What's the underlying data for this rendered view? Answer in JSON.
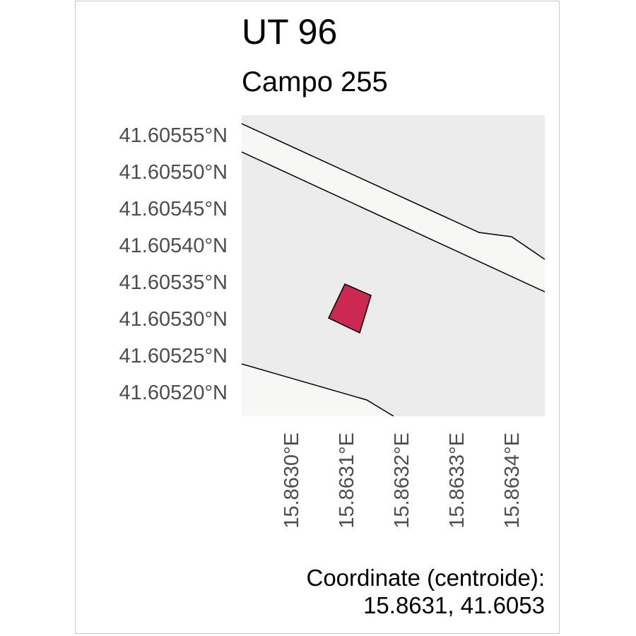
{
  "title": "UT 96",
  "subtitle": "Campo 255",
  "latitude_labels": [
    "41.60555°N",
    "41.60550°N",
    "41.60545°N",
    "41.60540°N",
    "41.60535°N",
    "41.60530°N",
    "41.60525°N",
    "41.60520°N"
  ],
  "longitude_labels": [
    "15.8630°E",
    "15.8631°E",
    "15.8632°E",
    "15.8633°E",
    "15.8634°E"
  ],
  "caption": {
    "line1": "Coordinate (centroide):",
    "line2": "15.8631, 41.6053"
  },
  "colors": {
    "panel_background": "#ebebeb",
    "road": "#f7f7f5",
    "parcel_fill": "#cc2952",
    "outline": "#000000",
    "axis_text": "#4d4d4d"
  },
  "map_features": [
    "road-upper",
    "road-lower",
    "parcel-polygon"
  ]
}
